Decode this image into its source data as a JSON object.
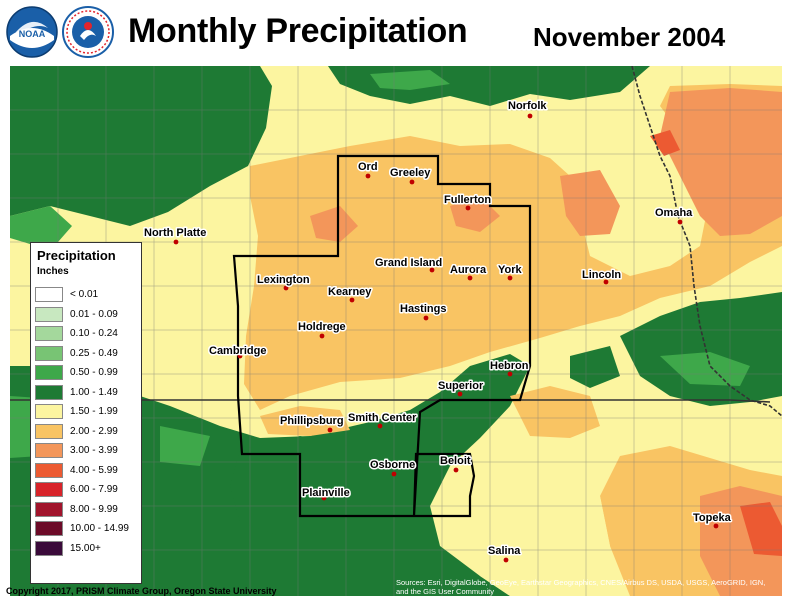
{
  "header": {
    "title": "Monthly Precipitation",
    "period": "November 2004",
    "logos": [
      {
        "name": "NOAA",
        "icon": "noaa-logo-icon"
      },
      {
        "name": "National Weather Service",
        "icon": "nws-logo-icon"
      }
    ]
  },
  "legend": {
    "title": "Precipitation",
    "units": "Inches",
    "items": [
      {
        "label": "< 0.01",
        "color": "#ffffff"
      },
      {
        "label": "0.01 - 0.09",
        "color": "#c8e8c0"
      },
      {
        "label": "0.10 - 0.24",
        "color": "#a4d89c"
      },
      {
        "label": "0.25 - 0.49",
        "color": "#78c474"
      },
      {
        "label": "0.50 - 0.99",
        "color": "#3ea84a"
      },
      {
        "label": "1.00 - 1.49",
        "color": "#1e7a34"
      },
      {
        "label": "1.50 - 1.99",
        "color": "#fcf5a0"
      },
      {
        "label": "2.00 - 2.99",
        "color": "#f9c463"
      },
      {
        "label": "3.00 - 3.99",
        "color": "#f3965a"
      },
      {
        "label": "4.00 - 5.99",
        "color": "#ec5a32"
      },
      {
        "label": "6.00 - 7.99",
        "color": "#d8232a"
      },
      {
        "label": "8.00 - 9.99",
        "color": "#a1142c"
      },
      {
        "label": "10.00 - 14.99",
        "color": "#6c0a28"
      },
      {
        "label": "15.00+",
        "color": "#3a0a3a"
      }
    ]
  },
  "cities": [
    {
      "name": "Norfolk"
    },
    {
      "name": "Ord"
    },
    {
      "name": "Greeley"
    },
    {
      "name": "Fullerton"
    },
    {
      "name": "North Platte"
    },
    {
      "name": "Omaha"
    },
    {
      "name": "Grand Island"
    },
    {
      "name": "Lexington"
    },
    {
      "name": "Aurora"
    },
    {
      "name": "York"
    },
    {
      "name": "Lincoln"
    },
    {
      "name": "Kearney"
    },
    {
      "name": "Hastings"
    },
    {
      "name": "Holdrege"
    },
    {
      "name": "Cambridge"
    },
    {
      "name": "Hebron"
    },
    {
      "name": "Superior"
    },
    {
      "name": "Phillipsburg"
    },
    {
      "name": "Smith Center"
    },
    {
      "name": "Osborne"
    },
    {
      "name": "Beloit"
    },
    {
      "name": "Plainville"
    },
    {
      "name": "Topeka"
    },
    {
      "name": "Salina"
    }
  ],
  "footer": {
    "copyright": "Copyright 2017, PRISM Climate Group, Oregon State University",
    "sources": "Sources: Esri, DigitalGlobe, GeoEye, Earthstar Geographics, CNES/Airbus DS, USDA, USGS, AeroGRID, IGN, and the GIS User Community"
  }
}
